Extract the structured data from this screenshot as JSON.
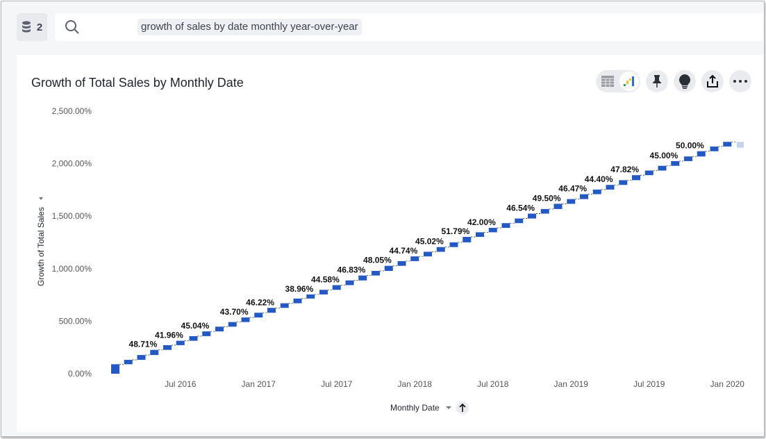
{
  "header": {
    "source_count": "2",
    "search_query": "growth of sales by date monthly year-over-year"
  },
  "card": {
    "title": "Growth of Total Sales by Monthly Date"
  },
  "toolbar": {
    "icons": [
      "table-icon",
      "chart-icon",
      "pin-icon",
      "lightbulb-icon",
      "share-icon",
      "more-icon"
    ]
  },
  "colors": {
    "bar": "#2359c4",
    "total": "#c3d3f0",
    "search_chip": "#eef0f4"
  },
  "chart_data": {
    "type": "waterfall",
    "title": "Growth of Total Sales by Monthly Date",
    "xlabel": "Monthly Date",
    "ylabel": "Growth of Total Sales",
    "ylim": [
      0,
      2500
    ],
    "yticks": [
      "0.00%",
      "500.00%",
      "1,000.00%",
      "1,500.00%",
      "2,000.00%",
      "2,500.00%"
    ],
    "ytick_values": [
      0,
      500,
      1000,
      1500,
      2000,
      2500
    ],
    "xticks": [
      "Jul 2016",
      "Jan 2017",
      "Jul 2017",
      "Jan 2018",
      "Jul 2018",
      "Jan 2019",
      "Jul 2019",
      "Jan 2020"
    ],
    "xtick_month_index": [
      5,
      11,
      17,
      23,
      29,
      35,
      41,
      47
    ],
    "first_month": "Feb 2016",
    "values": [
      90,
      42,
      46,
      48.71,
      45,
      41.96,
      44,
      45.04,
      45,
      44,
      43.7,
      45,
      46.22,
      44,
      45,
      38.96,
      44,
      44.58,
      45,
      46.83,
      44,
      48.05,
      45,
      44.74,
      44,
      45.02,
      45,
      51.79,
      44,
      42.0,
      45,
      44,
      46.54,
      44,
      49.5,
      45,
      46.47,
      44,
      44.4,
      45,
      47.82,
      44,
      45,
      45.0,
      44,
      50.0,
      45,
      44
    ],
    "labels": {
      "3": "48.71%",
      "5": "41.96%",
      "7": "45.04%",
      "10": "43.70%",
      "12": "46.22%",
      "15": "38.96%",
      "17": "44.58%",
      "19": "46.83%",
      "21": "48.05%",
      "23": "44.74%",
      "25": "45.02%",
      "27": "51.79%",
      "29": "42.00%",
      "32": "46.54%",
      "34": "49.50%",
      "36": "46.47%",
      "38": "44.40%",
      "40": "47.82%",
      "43": "45.00%",
      "45": "50.00%"
    },
    "total_bar": true,
    "grid": false,
    "legend": "none"
  }
}
